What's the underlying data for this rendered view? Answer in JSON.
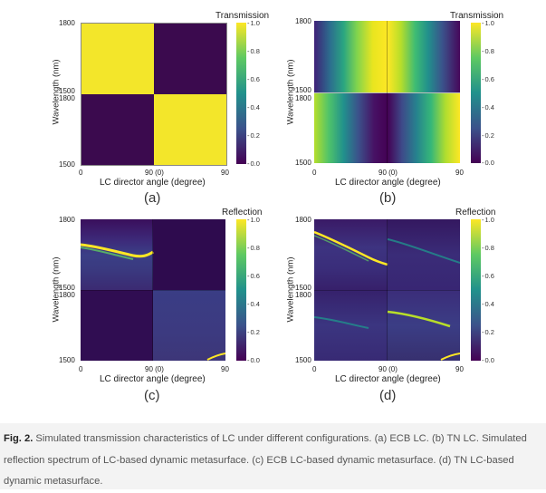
{
  "panels": [
    {
      "letter": "(a)",
      "ylabel": "Wavelength (nm)",
      "xlabel": "LC director angle (degree)",
      "colorbar_title": "Transmission",
      "y_ticks_top": [
        "1800",
        "1500"
      ],
      "y_ticks_bottom": [
        "1800",
        "1500"
      ],
      "x_ticks": [
        "0",
        "90 (0)",
        "90"
      ],
      "cb_ticks": [
        "1.0",
        "0.8",
        "0.6",
        "0.4",
        "0.2",
        "0.0"
      ]
    },
    {
      "letter": "(b)",
      "ylabel": "Wavelength (nm)",
      "xlabel": "LC director angle (degree)",
      "colorbar_title": "Transmission",
      "y_ticks_top": [
        "1800",
        "1500"
      ],
      "y_ticks_bottom": [
        "1800",
        "1500"
      ],
      "x_ticks": [
        "0",
        "90 (0)",
        "90"
      ],
      "cb_ticks": [
        "1.0",
        "0.8",
        "0.6",
        "0.4",
        "0.2",
        "0.0"
      ]
    },
    {
      "letter": "(c)",
      "ylabel": "Wavelength (nm)",
      "xlabel": "LC director angle (degree)",
      "colorbar_title": "Reflection",
      "y_ticks_top": [
        "1800",
        "1500"
      ],
      "y_ticks_bottom": [
        "1800",
        "1500"
      ],
      "x_ticks": [
        "0",
        "90 (0)",
        "90"
      ],
      "cb_ticks": [
        "1.0",
        "0.8",
        "0.6",
        "0.4",
        "0.2",
        "0.0"
      ]
    },
    {
      "letter": "(d)",
      "ylabel": "Wavelength (nm)",
      "xlabel": "LC director angle (degree)",
      "colorbar_title": "Reflection",
      "y_ticks_top": [
        "1800",
        "1500"
      ],
      "y_ticks_bottom": [
        "1800",
        "1500"
      ],
      "x_ticks": [
        "0",
        "90 (0)",
        "90"
      ],
      "cb_ticks": [
        "1.0",
        "0.8",
        "0.6",
        "0.4",
        "0.2",
        "0.0"
      ]
    }
  ],
  "caption": {
    "label": "Fig. 2.",
    "text": " Simulated transmission characteristics of LC under different configurations. (a) ECB LC. (b) TN LC. Simulated reflection spectrum of LC-based dynamic metasurface. (c) ECB LC-based dynamic metasurface. (d) TN LC-based dynamic metasurface."
  },
  "colors": {
    "viridis_low": "#440154",
    "viridis_high": "#fde725"
  }
}
